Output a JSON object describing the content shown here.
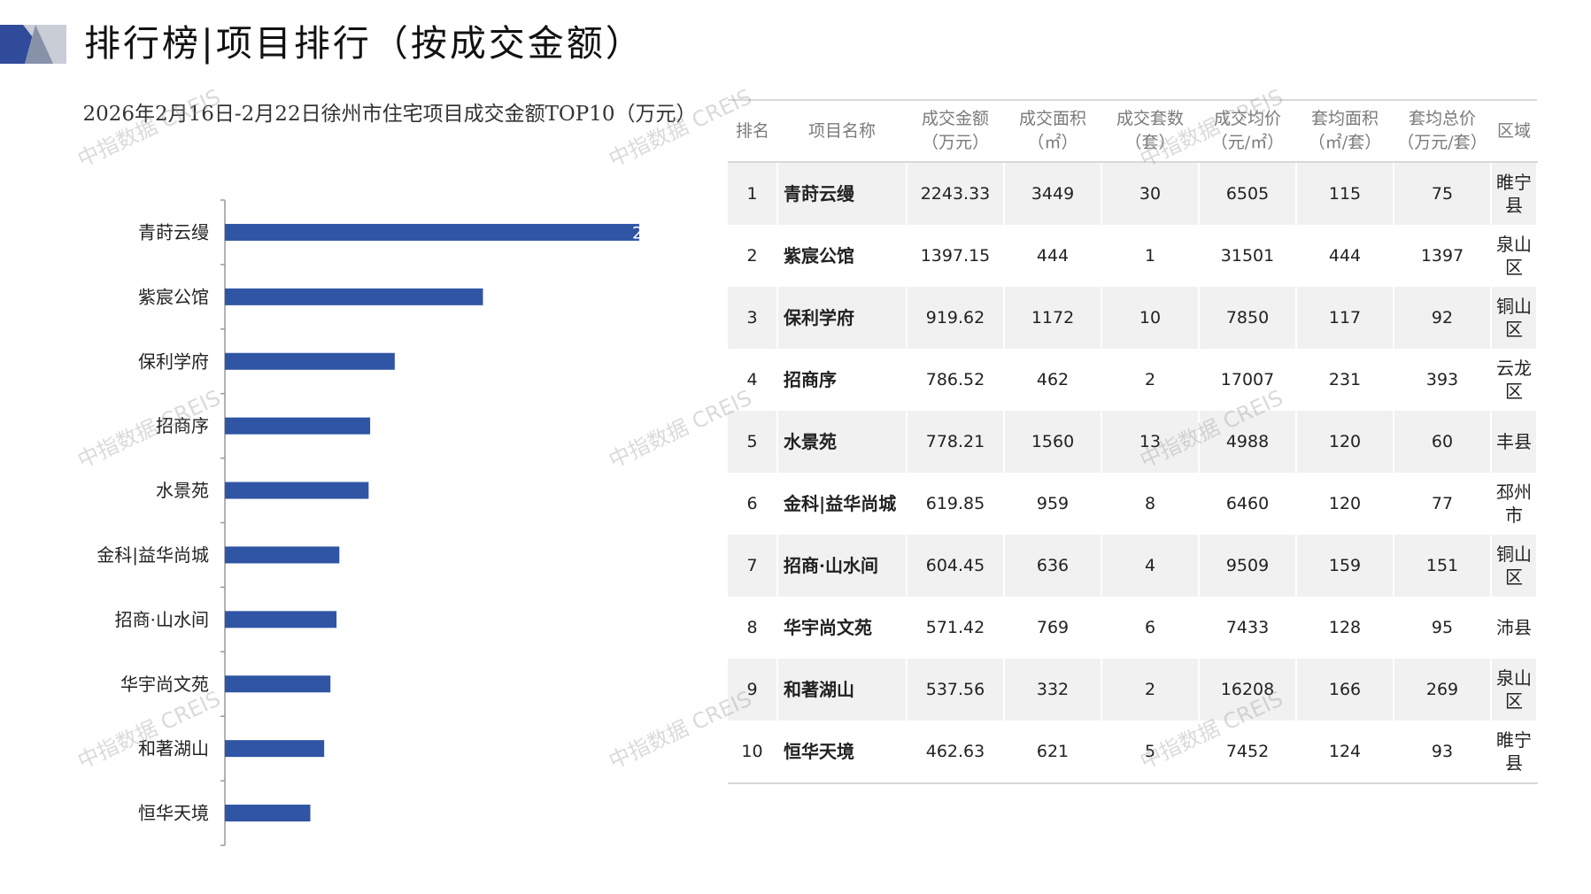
{
  "page_title": "排行榜|项目排行（按成交金额）",
  "colors": {
    "bar": "#2f55a4",
    "deco_dark": "#2f4b9a",
    "deco_light": "#c9ced6"
  },
  "chart_data": {
    "type": "bar",
    "orientation": "horizontal",
    "title": "2026年2月16日-2月22日徐州市住宅项目成交金额TOP10（万元）",
    "categories": [
      "青莳云缦",
      "紫宸公馆",
      "保利学府",
      "招商序",
      "水景苑",
      "金科|益华尚城",
      "招商·山水间",
      "华宇尚文苑",
      "和著湖山",
      "恒华天境"
    ],
    "values": [
      2243.33,
      1397.15,
      919.62,
      786.52,
      778.21,
      619.85,
      604.45,
      571.42,
      537.56,
      462.63
    ],
    "visible_data_labels": [
      "2",
      "",
      "",
      "",
      "",
      "",
      "",
      "",
      "",
      ""
    ],
    "xlim": [
      0,
      2243.33
    ],
    "grid": false,
    "legend": "none"
  },
  "table": {
    "headers": [
      "排名",
      "项目名称",
      "成交金额\n（万元）",
      "成交面积\n（㎡）",
      "成交套数\n（套）",
      "成交均价\n（元/㎡）",
      "套均面积\n（㎡/套）",
      "套均总价\n（万元/套）",
      "区域"
    ],
    "rows": [
      [
        "1",
        "青莳云缦",
        "2243.33",
        "3449",
        "30",
        "6505",
        "115",
        "75",
        "睢宁县"
      ],
      [
        "2",
        "紫宸公馆",
        "1397.15",
        "444",
        "1",
        "31501",
        "444",
        "1397",
        "泉山区"
      ],
      [
        "3",
        "保利学府",
        "919.62",
        "1172",
        "10",
        "7850",
        "117",
        "92",
        "铜山区"
      ],
      [
        "4",
        "招商序",
        "786.52",
        "462",
        "2",
        "17007",
        "231",
        "393",
        "云龙区"
      ],
      [
        "5",
        "水景苑",
        "778.21",
        "1560",
        "13",
        "4988",
        "120",
        "60",
        "丰县"
      ],
      [
        "6",
        "金科|益华尚城",
        "619.85",
        "959",
        "8",
        "6460",
        "120",
        "77",
        "邳州市"
      ],
      [
        "7",
        "招商·山水间",
        "604.45",
        "636",
        "4",
        "9509",
        "159",
        "151",
        "铜山区"
      ],
      [
        "8",
        "华宇尚文苑",
        "571.42",
        "769",
        "6",
        "7433",
        "128",
        "95",
        "沛县"
      ],
      [
        "9",
        "和著湖山",
        "537.56",
        "332",
        "2",
        "16208",
        "166",
        "269",
        "泉山区"
      ],
      [
        "10",
        "恒华天境",
        "462.63",
        "621",
        "5",
        "7452",
        "124",
        "93",
        "睢宁县"
      ]
    ]
  },
  "watermark": "中指数据 CREIS"
}
